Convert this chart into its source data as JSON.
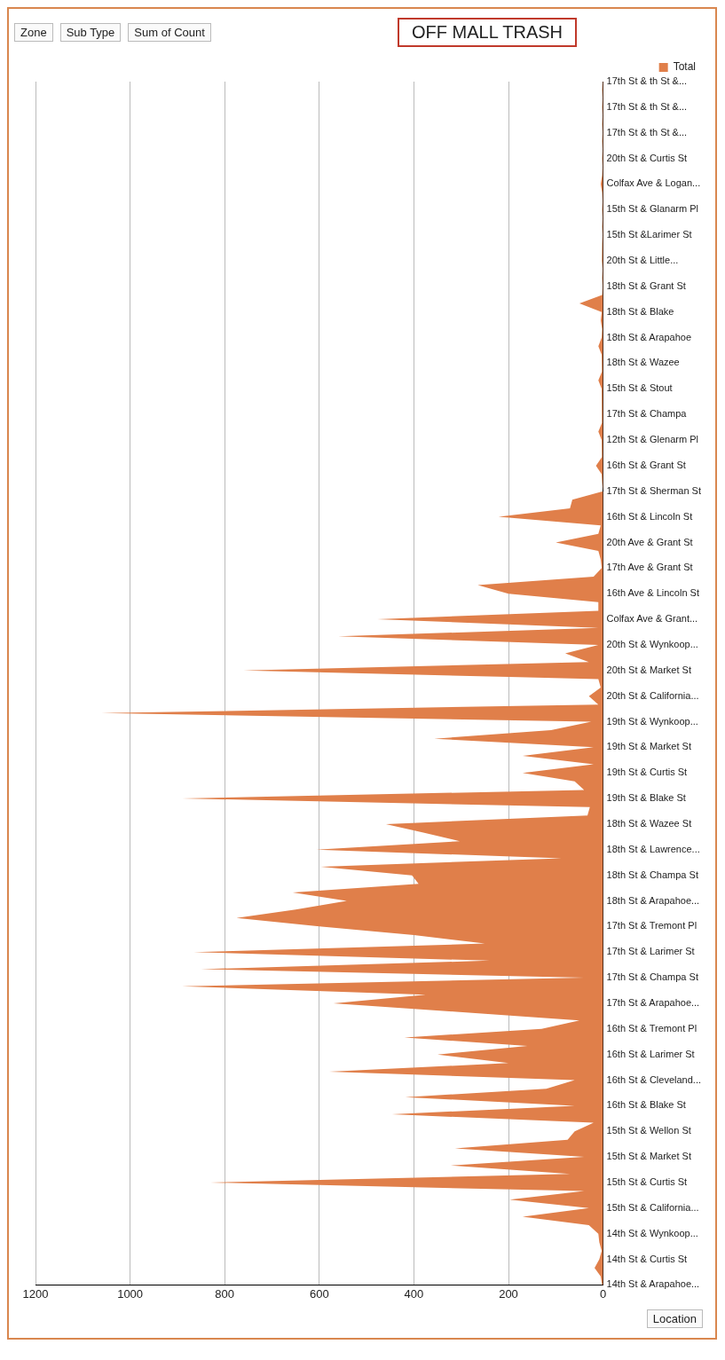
{
  "chart_data": {
    "type": "area",
    "orientation": "horizontal",
    "title": "OFF MALL TRASH",
    "annotations": [
      "Zone",
      "Sub Type",
      "Sum of Count",
      "Location"
    ],
    "categories": [
      "17th St & th St &...",
      null,
      null,
      "17th St & th St &...",
      null,
      null,
      "17th St & th St &...",
      null,
      null,
      "20th St & Curtis St",
      null,
      null,
      "Colfax Ave & Logan...",
      null,
      null,
      "15th St & Glanarm Pl",
      null,
      null,
      "15th St &Larimer St",
      null,
      null,
      "20th St & Little...",
      null,
      null,
      "18th St & Grant St",
      null,
      null,
      "18th St & Blake",
      null,
      null,
      "18th St & Arapahoe",
      null,
      null,
      "18th St & Wazee",
      null,
      null,
      "15th St & Stout",
      null,
      null,
      "17th St & Champa",
      null,
      null,
      "12th St & Glenarm Pl",
      null,
      null,
      "16th St & Grant St",
      null,
      null,
      "17th St & Sherman St",
      null,
      null,
      "16th St & Lincoln St",
      null,
      null,
      "20th Ave & Grant St",
      null,
      null,
      "17th Ave & Grant St",
      null,
      null,
      "16th Ave & Lincoln St",
      null,
      null,
      "Colfax Ave & Grant...",
      null,
      null,
      "20th St & Wynkoop...",
      null,
      null,
      "20th St & Market St",
      null,
      null,
      "20th St & California...",
      null,
      null,
      "19th St & Wynkoop...",
      null,
      null,
      "19th St & Market St",
      null,
      null,
      "19th St & Curtis St",
      null,
      null,
      "19th St & Blake St",
      null,
      null,
      "18th St & Wazee St",
      null,
      null,
      "18th St & Lawrence...",
      null,
      null,
      "18th St & Champa St",
      null,
      null,
      "18th St & Arapahoe...",
      null,
      null,
      "17th St & Tremont Pl",
      null,
      null,
      "17th St & Larimer St",
      null,
      null,
      "17th St & Champa St",
      null,
      null,
      "17th St & Arapahoe...",
      null,
      null,
      "16th St & Tremont Pl",
      null,
      null,
      "16th St & Larimer St",
      null,
      null,
      "16th St & Cleveland...",
      null,
      null,
      "16th St & Blake St",
      null,
      null,
      "15th St & Wellon St",
      null,
      null,
      "15th St & Market St",
      null,
      null,
      "15th St & Curtis St",
      null,
      null,
      "15th St & California...",
      null,
      null,
      "14th St & Wynkoop...",
      null,
      null,
      "14th St & Curtis St",
      null,
      null,
      "14th St & Arapahoe..."
    ],
    "series": [
      {
        "name": "Total",
        "color": "#e07f4a",
        "values": [
          1,
          2,
          1,
          2,
          1,
          2,
          1,
          2,
          1,
          2,
          1,
          2,
          5,
          2,
          1,
          2,
          1,
          2,
          1,
          2,
          2,
          3,
          1,
          2,
          1,
          2,
          50,
          3,
          5,
          2,
          3,
          10,
          3,
          2,
          3,
          10,
          3,
          2,
          3,
          2,
          3,
          10,
          3,
          2,
          3,
          15,
          3,
          2,
          0,
          65,
          70,
          221,
          5,
          10,
          100,
          10,
          5,
          3,
          20,
          265,
          200,
          10,
          10,
          477,
          10,
          560,
          10,
          80,
          30,
          760,
          10,
          5,
          30,
          10,
          1060,
          25,
          110,
          357,
          20,
          170,
          20,
          170,
          60,
          40,
          890,
          28,
          33,
          459,
          380,
          303,
          606,
          88,
          597,
          404,
          390,
          656,
          542,
          650,
          775,
          600,
          400,
          250,
          865,
          240,
          850,
          40,
          890,
          375,
          570,
          310,
          50,
          130,
          420,
          160,
          350,
          200,
          579,
          60,
          120,
          418,
          60,
          446,
          20,
          60,
          75,
          313,
          40,
          322,
          70,
          830,
          40,
          198,
          30,
          170,
          30,
          10,
          8,
          3,
          8,
          18,
          5,
          2
        ]
      }
    ],
    "xlim": [
      1200,
      0
    ],
    "xticks": [
      0,
      200,
      400,
      600,
      800,
      1000,
      1200
    ],
    "grid": "x",
    "legend": "top right"
  }
}
